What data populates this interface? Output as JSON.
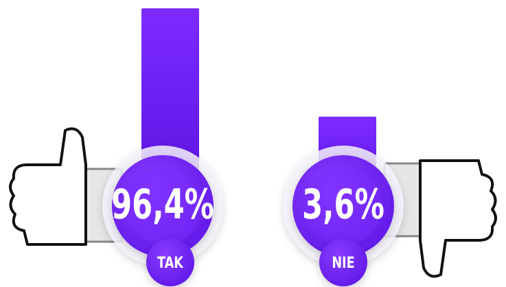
{
  "chart_data": {
    "type": "bar",
    "categories": [
      "TAK",
      "NIE"
    ],
    "values": [
      96.4,
      3.6
    ],
    "value_labels": [
      "96,4%",
      "3,6%"
    ],
    "color": "#6a1df0"
  }
}
